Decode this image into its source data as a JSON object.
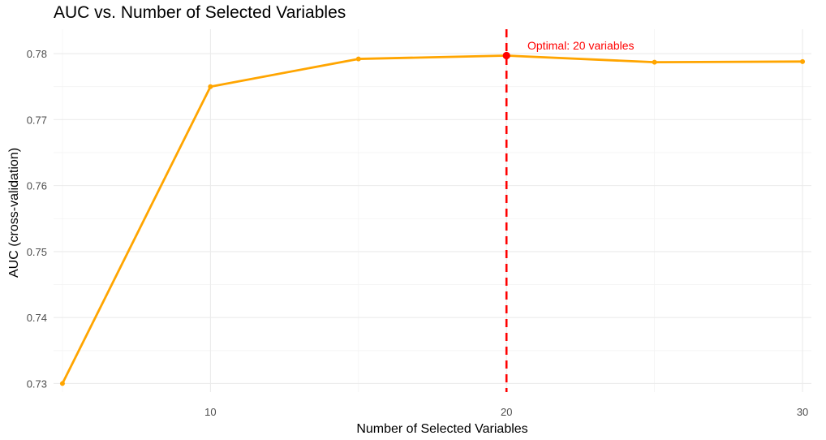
{
  "chart_data": {
    "type": "line",
    "title": "AUC vs. Number of Selected Variables",
    "xlabel": "Number of Selected Variables",
    "ylabel": "AUC (cross-validation)",
    "x": [
      5,
      10,
      15,
      20,
      25,
      30
    ],
    "series": [
      {
        "values": [
          0.73,
          0.775,
          0.7792,
          0.7797,
          0.7787,
          0.7788
        ]
      }
    ],
    "xlim": [
      4.7,
      30.3
    ],
    "ylim": [
      0.7287,
      0.7837
    ],
    "x_ticks": [
      10,
      20,
      30
    ],
    "x_tick_labels": [
      "10",
      "20",
      "30"
    ],
    "y_ticks": [
      0.73,
      0.74,
      0.75,
      0.76,
      0.77,
      0.78
    ],
    "y_tick_labels": [
      "0.73",
      "0.74",
      "0.75",
      "0.76",
      "0.77",
      "0.78"
    ],
    "grid": true,
    "highlight": {
      "x": 20,
      "y": 0.7797
    },
    "vline": {
      "x": 20,
      "label": "Optimal: 20 variables"
    },
    "colors": {
      "line": "#FFA500",
      "highlight": "#FF0000"
    }
  }
}
